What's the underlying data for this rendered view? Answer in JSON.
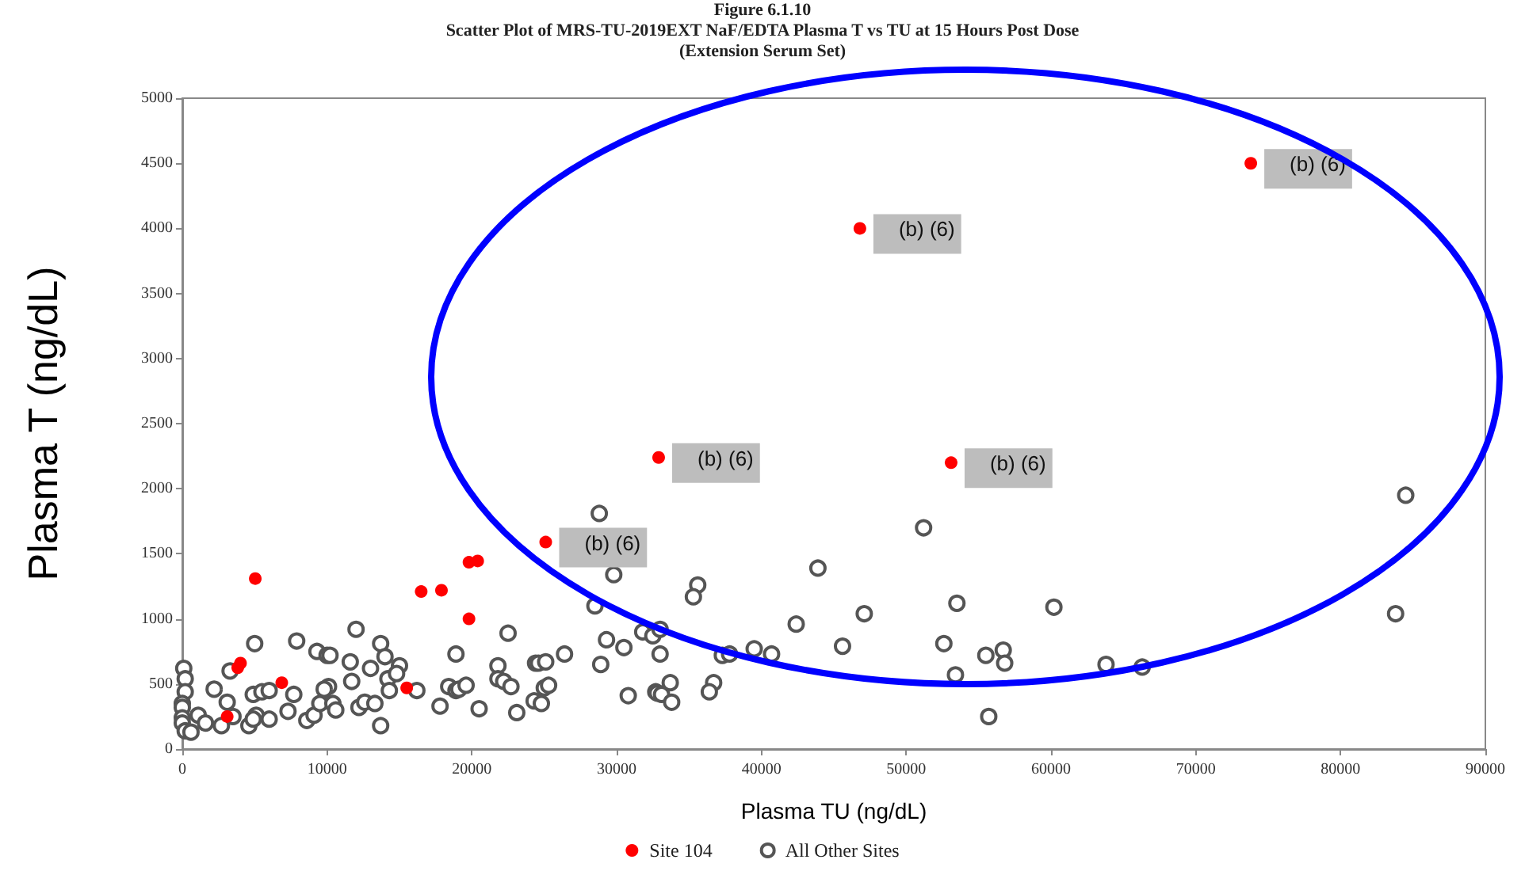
{
  "chart_data": {
    "type": "scatter",
    "title": "Figure 6.1.10",
    "subtitle": "Scatter Plot of MRS-TU-2019EXT NaF/EDTA Plasma T vs TU at 15 Hours Post Dose\n(Extension Serum Set)",
    "xlabel": "Plasma TU (ng/dL)",
    "ylabel": "Plasma T (ng/dL)",
    "xlim": [
      0,
      90000
    ],
    "xticks": [
      0,
      10000,
      20000,
      30000,
      40000,
      50000,
      60000,
      70000,
      80000,
      90000
    ],
    "ylim": [
      0,
      5000
    ],
    "yticks": [
      0,
      500,
      1000,
      1500,
      2000,
      2500,
      3000,
      3500,
      4000,
      4500,
      5000
    ],
    "grid": false,
    "legend": "bottom",
    "marker": "circle",
    "series": [
      {
        "name": "Site 104",
        "color": "#ff0000",
        "x": [
          73800,
          46800,
          32900,
          53100,
          25100,
          5040,
          16500,
          17900,
          19800,
          20400,
          19800,
          4020,
          3830,
          6870,
          3100,
          15500
        ],
        "values": [
          4500,
          4000,
          2240,
          2200,
          1590,
          1310,
          1210,
          1220,
          1435,
          1445,
          1000,
          660,
          625,
          510,
          250,
          470
        ]
      },
      {
        "name": "All Other Sites",
        "color": "#555555",
        "x": [
          100,
          200,
          200,
          0,
          0,
          0,
          0,
          200,
          600,
          1100,
          1600,
          2200,
          2700,
          3300,
          3100,
          3500,
          4600,
          5000,
          4900,
          5500,
          6000,
          5100,
          4900,
          6000,
          7300,
          7900,
          7700,
          8600,
          9100,
          9300,
          9500,
          10000,
          10200,
          10100,
          9800,
          10400,
          10600,
          11600,
          11700,
          12000,
          12200,
          12600,
          13000,
          13300,
          13700,
          14000,
          14200,
          13700,
          14300,
          15000,
          14800,
          16200,
          17800,
          18400,
          18900,
          18900,
          19100,
          19600,
          20500,
          21800,
          21800,
          22200,
          22500,
          22700,
          23100,
          24400,
          24600,
          25100,
          25000,
          25300,
          24300,
          24800,
          26400,
          28800,
          29800,
          28500,
          29300,
          28900,
          30500,
          30800,
          31800,
          32500,
          33000,
          32700,
          51200,
          84500,
          83800,
          43900,
          35600,
          35300,
          47100,
          53500,
          60200,
          42400,
          45600,
          52600,
          55500,
          56700,
          56800,
          53400,
          63800,
          66300,
          55700,
          33000,
          39500,
          40700,
          37300,
          37800,
          36700,
          36400,
          33700,
          32800,
          33100,
          33800
        ],
        "values": [
          620,
          540,
          440,
          350,
          320,
          240,
          200,
          140,
          130,
          260,
          200,
          460,
          180,
          600,
          360,
          250,
          180,
          810,
          420,
          440,
          450,
          260,
          230,
          230,
          290,
          830,
          420,
          220,
          260,
          750,
          350,
          720,
          720,
          480,
          460,
          350,
          300,
          670,
          520,
          920,
          320,
          360,
          620,
          350,
          810,
          710,
          540,
          180,
          450,
          640,
          580,
          450,
          330,
          480,
          730,
          450,
          460,
          490,
          310,
          640,
          540,
          520,
          890,
          480,
          280,
          660,
          660,
          670,
          470,
          490,
          370,
          350,
          730,
          1810,
          1340,
          1100,
          840,
          650,
          780,
          410,
          900,
          870,
          730,
          440,
          1700,
          1950,
          1040,
          1390,
          1260,
          1170,
          1040,
          1120,
          1090,
          960,
          790,
          810,
          720,
          760,
          660,
          570,
          650,
          630,
          250,
          920,
          770,
          730,
          720,
          730,
          510,
          440,
          510,
          430,
          420,
          360
        ]
      }
    ],
    "annotations": [
      {
        "text": "(b) (6)",
        "x": 73800,
        "y": 4500
      },
      {
        "text": "(b) (6)",
        "x": 46800,
        "y": 4000
      },
      {
        "text": "(b) (6)",
        "x": 32900,
        "y": 2240
      },
      {
        "text": "(b) (6)",
        "x": 53100,
        "y": 2200
      },
      {
        "text": "(b) (6)",
        "x": 25100,
        "y": 1590
      }
    ]
  }
}
